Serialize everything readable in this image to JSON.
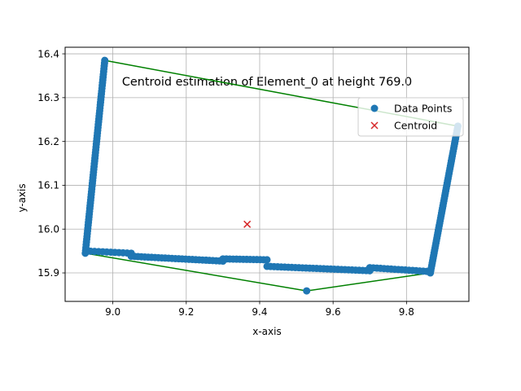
{
  "chart_data": {
    "type": "scatter",
    "title": "Centroid estimation of Element_0 at height 769.0",
    "xlabel": "x-axis",
    "ylabel": "y-axis",
    "xlim": [
      8.87,
      9.97
    ],
    "ylim": [
      15.835,
      16.415
    ],
    "xticks": [
      9.0,
      9.2,
      9.4,
      9.6,
      9.8
    ],
    "xtick_labels": [
      "9.0",
      "9.2",
      "9.4",
      "9.6",
      "9.8"
    ],
    "yticks": [
      15.9,
      16.0,
      16.1,
      16.2,
      16.3,
      16.4
    ],
    "ytick_labels": [
      "15.9",
      "16.0",
      "16.1",
      "16.2",
      "16.3",
      "16.4"
    ],
    "grid": true,
    "legend_position": "upper right",
    "colors": {
      "points": "#1f77b4",
      "centroid": "#d62728",
      "hull": "#008000"
    },
    "series": [
      {
        "name": "Data Points",
        "kind": "scatter",
        "segments": [
          {
            "from": [
              8.925,
              15.945
            ],
            "to": [
              8.978,
              16.385
            ],
            "n": 70
          },
          {
            "from": [
              8.928,
              15.95
            ],
            "to": [
              9.05,
              15.945
            ],
            "n": 12
          },
          {
            "from": [
              9.05,
              15.938
            ],
            "to": [
              9.3,
              15.927
            ],
            "n": 28
          },
          {
            "from": [
              9.3,
              15.932
            ],
            "to": [
              9.42,
              15.93
            ],
            "n": 14
          },
          {
            "from": [
              9.42,
              15.915
            ],
            "to": [
              9.7,
              15.905
            ],
            "n": 30
          },
          {
            "from": [
              9.7,
              15.912
            ],
            "to": [
              9.865,
              15.903
            ],
            "n": 18
          },
          {
            "from": [
              9.865,
              15.9
            ],
            "to": [
              9.94,
              16.235
            ],
            "n": 60
          }
        ],
        "extra_points": [
          [
            9.528,
            15.859
          ]
        ]
      },
      {
        "name": "Centroid",
        "kind": "marker",
        "x": 9.366,
        "y": 16.011
      }
    ],
    "hull": [
      [
        8.978,
        16.385
      ],
      [
        9.94,
        16.235
      ],
      [
        9.865,
        15.9
      ],
      [
        9.528,
        15.859
      ],
      [
        8.925,
        15.945
      ],
      [
        8.978,
        16.385
      ]
    ]
  }
}
